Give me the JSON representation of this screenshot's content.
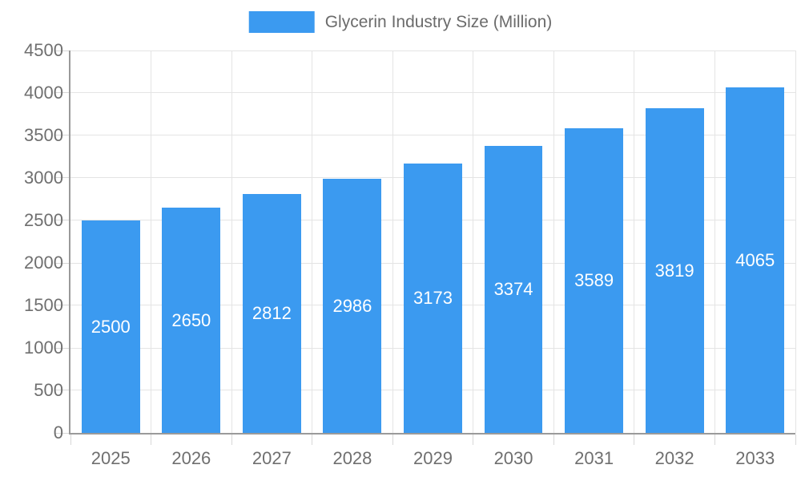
{
  "legend": {
    "label": "Glycerin Industry Size (Million)"
  },
  "chart_data": {
    "type": "bar",
    "title": "",
    "xlabel": "",
    "ylabel": "",
    "legend_position": "top",
    "legend_entries": [
      "Glycerin Industry Size (Million)"
    ],
    "categories": [
      "2025",
      "2026",
      "2027",
      "2028",
      "2029",
      "2030",
      "2031",
      "2032",
      "2033"
    ],
    "series": [
      {
        "name": "Glycerin Industry Size (Million)",
        "values": [
          2500,
          2650,
          2812,
          2986,
          3173,
          3374,
          3589,
          3819,
          4065
        ]
      }
    ],
    "bar_labels": [
      "2500",
      "2650",
      "2812",
      "2986",
      "3173",
      "3374",
      "3589",
      "3819",
      "4065"
    ],
    "ylim": [
      0,
      4500
    ],
    "yticks": [
      0,
      500,
      1000,
      1500,
      2000,
      2500,
      3000,
      3500,
      4000,
      4500
    ],
    "grid": true
  },
  "colors": {
    "bar": "#3b9af0",
    "bar_label": "#ffffff",
    "legend_swatch": "#3b9af0",
    "axis_text": "#6f6f6f",
    "legend_text": "#6b6b6b",
    "gridline": "#e4e4e4",
    "axis_line": "#9a9a9a",
    "tick": "#d7d7d7",
    "background": "#ffffff"
  }
}
